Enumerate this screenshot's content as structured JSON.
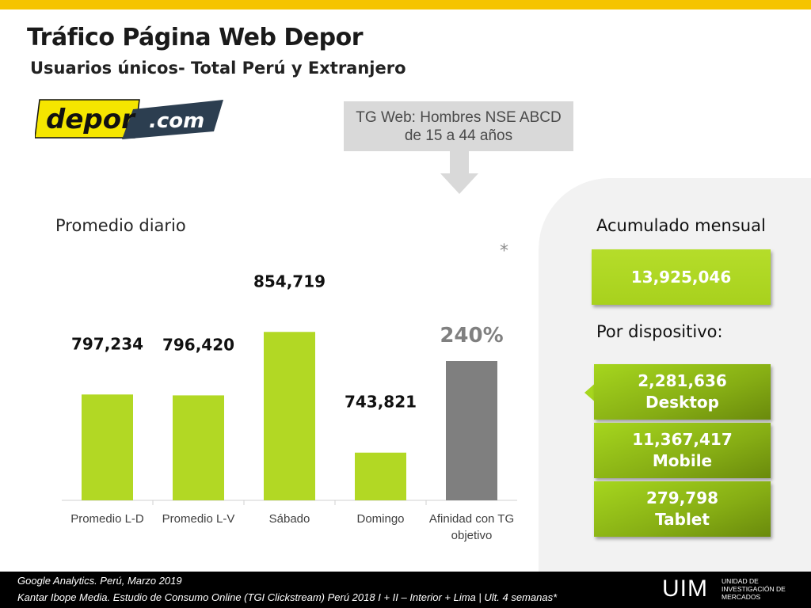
{
  "header": {
    "title": "Tráfico Página Web Depor",
    "subtitle": "Usuarios únicos- Total Perú y Extranjero"
  },
  "logo": {
    "text_main": "depor",
    "text_domain": ".com",
    "colors": {
      "yellow": "#f5e600",
      "navy": "#2c3e50",
      "black": "#111111"
    }
  },
  "callout": {
    "line1": "TG Web: Hombres NSE ABCD",
    "line2": "de 15 a 44 años"
  },
  "section": {
    "daily_label": "Promedio diario",
    "asterisk": "*"
  },
  "chart_data": {
    "type": "bar",
    "title": "",
    "categories": [
      "Promedio L-D",
      "Promedio L-V",
      "Sábado",
      "Domingo",
      "Afinidad con TG objetivo"
    ],
    "category_lines": [
      [
        "Promedio L-D"
      ],
      [
        "Promedio L-V"
      ],
      [
        "Sábado"
      ],
      [
        "Domingo"
      ],
      [
        "Afinidad con TG",
        "objetivo"
      ]
    ],
    "values": [
      797234,
      796420,
      854719,
      743821,
      240
    ],
    "data_labels": [
      "797,234",
      "796,420",
      "854,719",
      "743,821",
      "240%"
    ],
    "units": [
      "users",
      "users",
      "users",
      "users",
      "percent"
    ],
    "ylim": [
      700000,
      860000
    ],
    "affinity_ylim": [
      0,
      300
    ],
    "colors": {
      "bar": "#b2d824",
      "affinity_bar": "#7f7f7f",
      "affinity_label": "#808080"
    },
    "grid": false,
    "legend": "none"
  },
  "right_panel": {
    "acumulado_label": "Acumulado mensual",
    "acumulado_value": "13,925,046",
    "dispositivo_label": "Por dispositivo:",
    "devices": [
      {
        "value": "2,281,636",
        "name": "Desktop"
      },
      {
        "value": "11,367,417",
        "name": "Mobile"
      },
      {
        "value": "279,798",
        "name": "Tablet"
      }
    ]
  },
  "footer": {
    "source1": "Google Analytics. Perú, Marzo 2019",
    "source2": "Kantar Ibope Media. Estudio de Consumo Online (TGI Clickstream) Perú 2018 I + II – Interior + Lima | Ult. 4 semanas*",
    "brand": "UIM",
    "brand_sub": [
      "UNIDAD DE",
      "INVESTIGACIÓN DE",
      "MERCADOS"
    ]
  }
}
